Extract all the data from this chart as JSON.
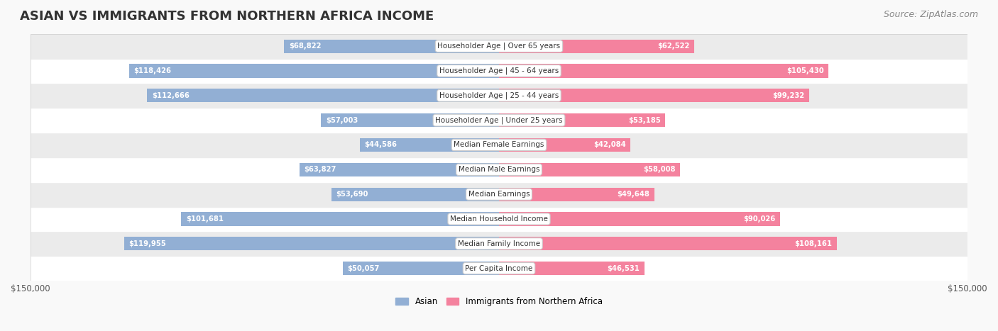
{
  "title": "ASIAN VS IMMIGRANTS FROM NORTHERN AFRICA INCOME",
  "source": "Source: ZipAtlas.com",
  "categories": [
    "Per Capita Income",
    "Median Family Income",
    "Median Household Income",
    "Median Earnings",
    "Median Male Earnings",
    "Median Female Earnings",
    "Householder Age | Under 25 years",
    "Householder Age | 25 - 44 years",
    "Householder Age | 45 - 64 years",
    "Householder Age | Over 65 years"
  ],
  "asian_values": [
    50057,
    119955,
    101681,
    53690,
    63827,
    44586,
    57003,
    112666,
    118426,
    68822
  ],
  "immigrant_values": [
    46531,
    108161,
    90026,
    49648,
    58008,
    42084,
    53185,
    99232,
    105430,
    62522
  ],
  "asian_color": "#92afd4",
  "immigrant_color": "#f4829e",
  "asian_label": "Asian",
  "immigrant_label": "Immigrants from Northern Africa",
  "max_val": 150000,
  "xlabel_left": "$150,000",
  "xlabel_right": "$150,000",
  "title_fontsize": 13,
  "source_fontsize": 9,
  "label_fontsize": 8.5,
  "bar_height": 0.55,
  "bg_color": "#f5f5f5",
  "row_bg_even": "#ffffff",
  "row_bg_odd": "#f0f0f0"
}
